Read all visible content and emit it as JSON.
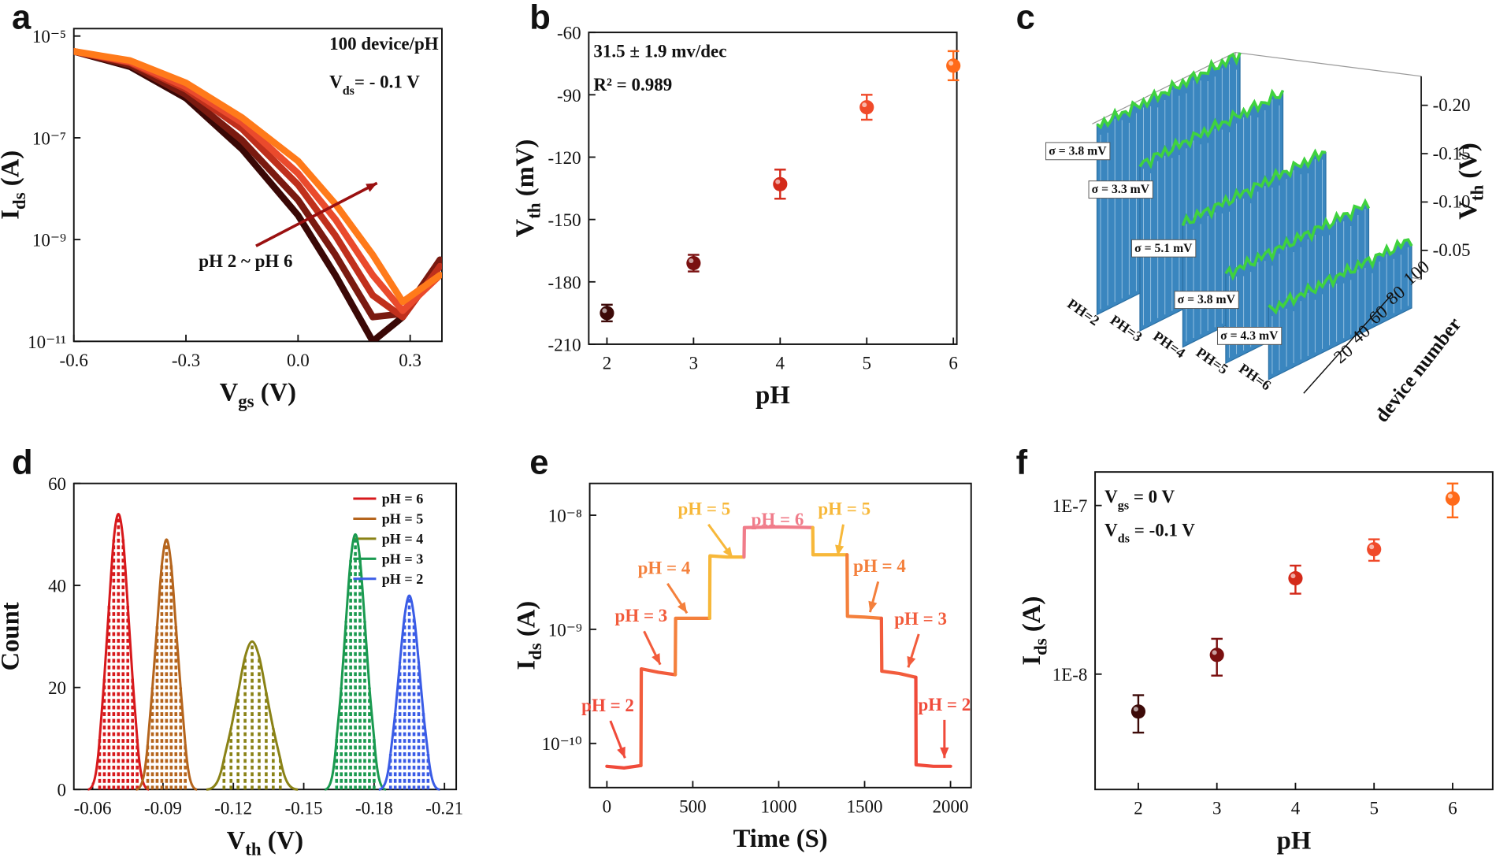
{
  "chart_data": [
    {
      "type": "line",
      "panel_label": "a",
      "log_y": true,
      "xlabel": [
        "V",
        "gs",
        " (V)"
      ],
      "ylabel": [
        "I",
        "ds",
        " (A)"
      ],
      "xlim": [
        -0.6,
        0.385
      ],
      "xticks": [
        -0.6,
        -0.3,
        {
          "value": 0,
          "label": "0.0"
        },
        0.3
      ],
      "ylim": [
        1e-11,
        1.4e-05
      ],
      "yticks": [
        {
          "value": 1e-05,
          "label": "10⁻⁵"
        },
        {
          "value": 1e-07,
          "label": "10⁻⁷"
        },
        {
          "value": 1e-09,
          "label": "10⁻⁹"
        },
        {
          "value": 1e-11,
          "label": "10⁻¹¹"
        }
      ],
      "annotations": [
        "100 device/pH",
        [
          "V",
          "ds",
          "= - 0.1 V"
        ],
        "pH 2 ~ pH 6"
      ],
      "x": [
        -0.6,
        -0.45,
        -0.3,
        -0.15,
        0,
        0.1,
        0.2,
        0.28,
        0.38
      ],
      "series": [
        {
          "color": "#3a0806",
          "values": [
            5e-06,
            2.5e-06,
            6e-07,
            6e-08,
            3e-09,
            2e-10,
            1e-11,
            3e-11,
            4e-10
          ]
        },
        {
          "color": "#7a1a10",
          "values": [
            5e-06,
            2.7e-06,
            7e-07,
            9e-08,
            6e-09,
            5e-10,
            3e-11,
            3.5e-11,
            4e-10
          ]
        },
        {
          "color": "#c0301c",
          "values": [
            5e-06,
            3e-06,
            9e-07,
            1.5e-07,
            1.2e-08,
            1.2e-09,
            8e-11,
            3e-11,
            3e-10
          ]
        },
        {
          "color": "#ea4a2c",
          "values": [
            5e-06,
            3.1e-06,
            1e-06,
            2e-07,
            2e-08,
            2.5e-09,
            2e-10,
            4e-11,
            2e-10
          ]
        },
        {
          "color": "#ff7a1a",
          "values": [
            5e-06,
            3.3e-06,
            1.2e-06,
            2.5e-07,
            3.5e-08,
            5e-09,
            5e-10,
            6e-11,
            2e-10
          ]
        }
      ]
    },
    {
      "type": "scatter",
      "panel_label": "b",
      "xlabel": "pH",
      "ylabel": [
        "V",
        "th",
        " (mV)"
      ],
      "xlim": [
        1.79,
        6.04
      ],
      "xticks": [
        2,
        3,
        4,
        5,
        6
      ],
      "ylim": [
        -210,
        -60
      ],
      "yticks": [
        -210,
        -180,
        -150,
        -120,
        -90,
        -60
      ],
      "x": [
        2,
        3,
        4,
        5,
        6
      ],
      "values": [
        -195,
        -171,
        -133,
        -96,
        -76
      ],
      "errors": [
        4,
        4,
        7,
        6,
        7
      ],
      "colors": [
        "#3d0a08",
        "#7a1010",
        "#d42a1a",
        "#f04a2a",
        "#ff6a1a"
      ],
      "annotations": [
        "31.5  ± 1.9 mv/dec",
        "R² = 0.989"
      ]
    },
    {
      "type": "waterfall3d",
      "panel_label": "c",
      "categories": [
        "PH=2",
        "PH=3",
        "PH=4",
        "PH=5",
        "PH=6"
      ],
      "values": [
        -0.195,
        -0.172,
        -0.128,
        -0.0915,
        -0.071
      ],
      "annotations": [
        "σ = 3.8 mV",
        "σ = 3.3 mV",
        "σ = 5.1 mV",
        "σ = 3.8 mV",
        "σ = 4.3 mV"
      ],
      "zlim": [
        -0.02,
        -0.23
      ],
      "zticks": [
        {
          "value": -0.2,
          "label": "-0.20"
        },
        -0.15,
        {
          "value": -0.1,
          "label": "-0.10"
        },
        -0.05
      ],
      "zlabel": [
        "V",
        "th",
        " (V)"
      ],
      "device_ticks": [
        20,
        40,
        60,
        80,
        100
      ],
      "device_label": "device number"
    },
    {
      "type": "histogram_fit",
      "panel_label": "d",
      "xlabel": [
        "V",
        "th",
        " (V)"
      ],
      "ylabel": "Count",
      "xlim": [
        -0.052,
        -0.215
      ],
      "xticks": [
        -0.06,
        -0.09,
        -0.12,
        -0.15,
        -0.18,
        -0.21
      ],
      "ylim": [
        0,
        60
      ],
      "yticks": [
        0,
        20,
        40,
        60
      ],
      "legend": "upper right",
      "series": [
        {
          "name": "pH = 6",
          "color": "#d7191c",
          "x": [
            -0.063,
            -0.065,
            -0.067,
            -0.069,
            -0.071,
            -0.073,
            -0.075,
            -0.077,
            -0.079
          ],
          "values": [
            10,
            22,
            36,
            49,
            54,
            49,
            36,
            22,
            10
          ]
        },
        {
          "name": "pH = 5",
          "color": "#b5651d",
          "x": [
            -0.0835,
            -0.0855,
            -0.0875,
            -0.0895,
            -0.0915,
            -0.0935,
            -0.0955,
            -0.0975,
            -0.0995
          ],
          "values": [
            9,
            20,
            32,
            44,
            49,
            44,
            32,
            20,
            9
          ]
        },
        {
          "name": "pH = 4",
          "color": "#8a8216",
          "x": [
            -0.116,
            -0.119,
            -0.122,
            -0.125,
            -0.128,
            -0.131,
            -0.134,
            -0.137,
            -0.14
          ],
          "values": [
            6,
            12,
            19,
            26,
            29,
            26,
            19,
            12,
            6
          ]
        },
        {
          "name": "pH = 3",
          "color": "#1a9a50",
          "x": [
            -0.164,
            -0.166,
            -0.168,
            -0.17,
            -0.172,
            -0.174,
            -0.176,
            -0.178,
            -0.18
          ],
          "values": [
            10,
            20,
            33,
            45,
            50,
            45,
            33,
            20,
            10
          ]
        },
        {
          "name": "pH = 2",
          "color": "#3a5ce6",
          "x": [
            -0.187,
            -0.189,
            -0.191,
            -0.193,
            -0.195,
            -0.197,
            -0.199,
            -0.201,
            -0.203
          ],
          "values": [
            7,
            15,
            25,
            34,
            38,
            34,
            25,
            15,
            7
          ]
        }
      ]
    },
    {
      "type": "line",
      "panel_label": "e",
      "log_y": true,
      "xlabel": "Time (S)",
      "ylabel": [
        "I",
        "ds",
        " (A)"
      ],
      "xlim": [
        -100,
        2120
      ],
      "xticks": [
        0,
        500,
        1000,
        1500,
        2000
      ],
      "ylim": [
        4.1e-11,
        1.9e-08
      ],
      "yticks": [
        {
          "value": 1e-08,
          "label": "10⁻⁸"
        },
        {
          "value": 1e-09,
          "label": "10⁻⁹"
        },
        {
          "value": 1e-10,
          "label": "10⁻¹⁰"
        }
      ],
      "series": [
        {
          "color": "#f04a3a",
          "x": [
            0,
            100,
            198
          ],
          "values": [
            6.3e-11,
            6.1e-11,
            6.4e-11
          ]
        },
        {
          "color": "#f25c3c",
          "x": [
            198,
            200,
            300,
            398
          ],
          "values": [
            6.4e-11,
            4.5e-10,
            4.2e-10,
            4e-10
          ]
        },
        {
          "color": "#f4803c",
          "x": [
            398,
            400,
            500,
            598
          ],
          "values": [
            4e-10,
            1.25e-09,
            1.25e-09,
            1.25e-09
          ]
        },
        {
          "color": "#f7b83a",
          "x": [
            598,
            600,
            700,
            798
          ],
          "values": [
            1.25e-09,
            4.4e-09,
            4.3e-09,
            4.3e-09
          ]
        },
        {
          "color": "#f07c8a",
          "x": [
            798,
            800,
            1000,
            1198
          ],
          "values": [
            4.3e-09,
            7.8e-09,
            7.9e-09,
            7.8e-09
          ]
        },
        {
          "color": "#f7b83a",
          "x": [
            1198,
            1200,
            1300,
            1398
          ],
          "values": [
            7.8e-09,
            4.5e-09,
            4.5e-09,
            4.5e-09
          ]
        },
        {
          "color": "#f4803c",
          "x": [
            1398,
            1400,
            1500,
            1598
          ],
          "values": [
            4.5e-09,
            1.3e-09,
            1.28e-09,
            1.25e-09
          ]
        },
        {
          "color": "#f25c3c",
          "x": [
            1598,
            1600,
            1700,
            1798
          ],
          "values": [
            1.25e-09,
            4.3e-10,
            4.1e-10,
            3.8e-10
          ]
        },
        {
          "color": "#f04a3a",
          "x": [
            1798,
            1800,
            1900,
            2000
          ],
          "values": [
            3.8e-10,
            6.5e-11,
            6.3e-11,
            6.3e-11
          ]
        }
      ],
      "annotations": [
        {
          "text": "pH = 2",
          "color": "#f04a3a"
        },
        {
          "text": "pH = 3",
          "color": "#f25c3c"
        },
        {
          "text": "pH = 4",
          "color": "#f4803c"
        },
        {
          "text": "pH = 5",
          "color": "#f7b83a"
        },
        {
          "text": "pH = 6",
          "color": "#f07c8a"
        },
        {
          "text": "pH = 5",
          "color": "#f7b83a"
        },
        {
          "text": "pH = 4",
          "color": "#f4803c"
        },
        {
          "text": "pH = 3",
          "color": "#f25c3c"
        },
        {
          "text": "pH = 2",
          "color": "#f04a3a"
        }
      ]
    },
    {
      "type": "scatter",
      "panel_label": "f",
      "log_y": true,
      "xlabel": "pH",
      "ylabel": [
        "I",
        "ds",
        " (A)"
      ],
      "xlim": [
        1.45,
        6.51
      ],
      "xticks": [
        2,
        3,
        4,
        5,
        6
      ],
      "ylim": [
        2.07e-09,
        1.58e-07
      ],
      "yticks": [
        {
          "value": 1e-07,
          "label": "1E-7"
        },
        {
          "value": 1e-08,
          "label": "1E-8"
        }
      ],
      "x": [
        2,
        3,
        4,
        5,
        6
      ],
      "values": [
        6e-09,
        1.3e-08,
        3.7e-08,
        5.5e-08,
        1.1e-07
      ],
      "errors": [
        1.5e-09,
        3.2e-09,
        7e-09,
        8e-09,
        2.5e-08
      ],
      "colors": [
        "#3d0a08",
        "#7a1010",
        "#d42a1a",
        "#f04a2a",
        "#ff6a1a"
      ],
      "annotations": [
        [
          "V",
          "gs",
          " = 0 V"
        ],
        [
          "V",
          "ds",
          " = -0.1 V"
        ]
      ]
    }
  ]
}
